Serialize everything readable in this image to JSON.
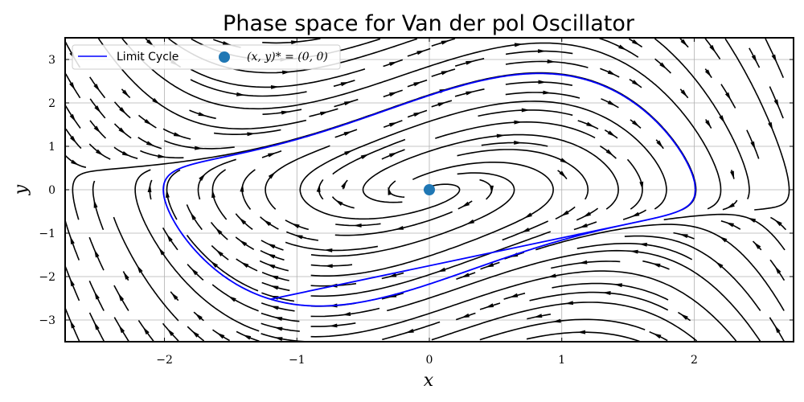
{
  "chart_data": {
    "type": "streamplot",
    "title": "Phase space for Van der pol Oscillator",
    "xlabel": "x",
    "ylabel": "y",
    "xlim": [
      -2.75,
      2.75
    ],
    "ylim": [
      -3.5,
      3.5
    ],
    "xticks": [
      -2,
      -1,
      0,
      1,
      2
    ],
    "yticks": [
      -3,
      -2,
      -1,
      0,
      1,
      2,
      3
    ],
    "xtick_labels": [
      "−2",
      "−1",
      "0",
      "1",
      "2"
    ],
    "ytick_labels": [
      "−3",
      "−2",
      "−1",
      "0",
      "1",
      "2",
      "3"
    ],
    "grid": true,
    "mu": 1,
    "legend": {
      "placement": "top-left",
      "columns": 2,
      "entries": [
        {
          "label": "Limit Cycle",
          "marker": "line",
          "color": "#0000ff"
        },
        {
          "label": "(x, y)* = (0, 0)",
          "marker": "circle",
          "color": "#1f77b4"
        }
      ]
    },
    "equilibrium": {
      "x": 0,
      "y": 0,
      "color": "#1f77b4"
    },
    "limit_cycle": {
      "color": "#0000ff",
      "x_range": [
        -2.01,
        2.01
      ],
      "y_range": [
        -3.22,
        3.22
      ]
    },
    "stream_color": "#000000"
  }
}
